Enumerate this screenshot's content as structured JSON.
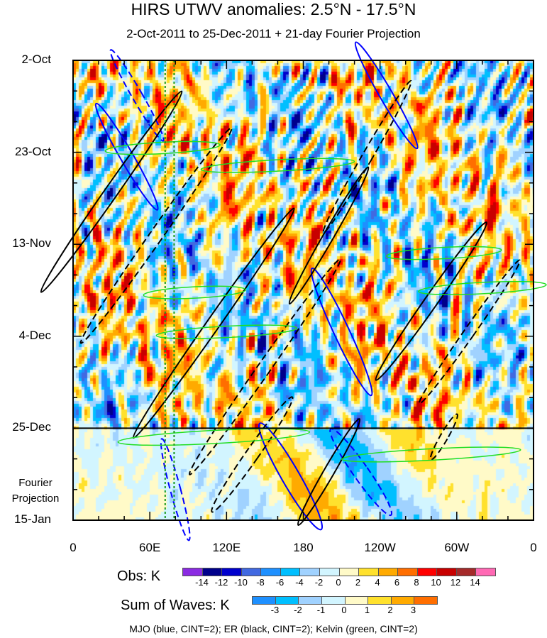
{
  "title": "HIRS UTWV anomalies: 2.5°N - 17.5°N",
  "subtitle": "2-Oct-2011 to 25-Dec-2011 + 21-day Fourier Projection",
  "fourier_label": [
    "Fourier",
    "Projection"
  ],
  "footer": "MJO (blue, CINT=2); ER (black, CINT=2); Kelvin (green, CINT=2)",
  "chart_data": {
    "type": "heatmap",
    "x_ticks": [
      {
        "lon": 0,
        "label": "0"
      },
      {
        "lon": 60,
        "label": "60E"
      },
      {
        "lon": 120,
        "label": "120E"
      },
      {
        "lon": 180,
        "label": "180"
      },
      {
        "lon": 240,
        "label": "120W"
      },
      {
        "lon": 300,
        "label": "60W"
      },
      {
        "lon": 360,
        "label": "0"
      }
    ],
    "y_ticks": [
      {
        "day": 0,
        "label": "2-Oct"
      },
      {
        "day": 21,
        "label": "23-Oct"
      },
      {
        "day": 42,
        "label": "13-Nov"
      },
      {
        "day": 63,
        "label": "4-Dec"
      },
      {
        "day": 84,
        "label": "25-Dec"
      },
      {
        "day": 105,
        "label": "15-Jan"
      }
    ],
    "xlim": [
      0,
      360
    ],
    "ylim_days": [
      0,
      105
    ],
    "obs_end_day": 84,
    "obs_colorbar": {
      "label": "Obs: K",
      "levels": [
        "-14",
        "-12",
        "-10",
        "-8",
        "-6",
        "-4",
        "-2",
        "0",
        "2",
        "4",
        "6",
        "8",
        "10",
        "12",
        "14"
      ],
      "colors": [
        "#8b2be2",
        "#00008b",
        "#0000cd",
        "#4169e1",
        "#1e90ff",
        "#00bfff",
        "#a0d2ff",
        "#d2f5ff",
        "#fffac8",
        "#ffe12d",
        "#ffaa00",
        "#ff6e00",
        "#ff0000",
        "#c80000",
        "#a52a2a",
        "#ff69b4"
      ]
    },
    "waves_colorbar": {
      "label": "Sum of Waves: K",
      "levels": [
        "-3",
        "-2",
        "-1",
        "0",
        "1",
        "2",
        "3"
      ],
      "colors": [
        "#1e90ff",
        "#00bfff",
        "#a0d2ff",
        "#d2f5ff",
        "#fffac8",
        "#ffe12d",
        "#ffaa00",
        "#ff6e00"
      ]
    },
    "mjo_reference_lons": [
      72,
      79
    ],
    "contours": [
      {
        "wave": "MJO",
        "color": "#0000ff",
        "lon": 50,
        "day": 8,
        "rx": 4,
        "ry": 12,
        "tilt": -30,
        "dash": true
      },
      {
        "wave": "MJO",
        "color": "#0000ff",
        "lon": 42,
        "day": 22,
        "rx": 5,
        "ry": 14,
        "tilt": -30,
        "dash": false
      },
      {
        "wave": "MJO",
        "color": "#0000ff",
        "lon": 245,
        "day": 8,
        "rx": 5,
        "ry": 14,
        "tilt": -30,
        "dash": false
      },
      {
        "wave": "MJO",
        "color": "#0000ff",
        "lon": 210,
        "day": 62,
        "rx": 6,
        "ry": 16,
        "tilt": -25,
        "dash": false
      },
      {
        "wave": "MJO",
        "color": "#0000ff",
        "lon": 225,
        "day": 94,
        "rx": 6,
        "ry": 12,
        "tilt": -35,
        "dash": true
      },
      {
        "wave": "MJO",
        "color": "#0000ff",
        "lon": 170,
        "day": 95,
        "rx": 7,
        "ry": 14,
        "tilt": -30,
        "dash": false
      },
      {
        "wave": "MJO",
        "color": "#0000ff",
        "lon": 80,
        "day": 98,
        "rx": 4,
        "ry": 12,
        "tilt": -15,
        "dash": true
      },
      {
        "wave": "ER",
        "color": "#000000",
        "lon": 30,
        "day": 30,
        "rx": 5,
        "ry": 28,
        "tilt": 35,
        "dash": false
      },
      {
        "wave": "ER",
        "color": "#000000",
        "lon": 65,
        "day": 40,
        "rx": 5,
        "ry": 30,
        "tilt": 35,
        "dash": true
      },
      {
        "wave": "ER",
        "color": "#000000",
        "lon": 110,
        "day": 60,
        "rx": 5,
        "ry": 32,
        "tilt": 35,
        "dash": false
      },
      {
        "wave": "ER",
        "color": "#000000",
        "lon": 150,
        "day": 70,
        "rx": 5,
        "ry": 30,
        "tilt": 35,
        "dash": true
      },
      {
        "wave": "ER",
        "color": "#000000",
        "lon": 200,
        "day": 40,
        "rx": 4,
        "ry": 18,
        "tilt": 30,
        "dash": false
      },
      {
        "wave": "ER",
        "color": "#000000",
        "lon": 230,
        "day": 22,
        "rx": 4,
        "ry": 20,
        "tilt": 30,
        "dash": true
      },
      {
        "wave": "ER",
        "color": "#000000",
        "lon": 280,
        "day": 55,
        "rx": 5,
        "ry": 22,
        "tilt": 35,
        "dash": false
      },
      {
        "wave": "ER",
        "color": "#000000",
        "lon": 310,
        "day": 62,
        "rx": 4,
        "ry": 20,
        "tilt": 35,
        "dash": true
      },
      {
        "wave": "ER",
        "color": "#000000",
        "lon": 200,
        "day": 94,
        "rx": 4,
        "ry": 14,
        "tilt": 30,
        "dash": false
      },
      {
        "wave": "ER",
        "color": "#000000",
        "lon": 140,
        "day": 90,
        "rx": 5,
        "ry": 16,
        "tilt": 35,
        "dash": true
      },
      {
        "wave": "ER",
        "color": "#000000",
        "lon": 290,
        "day": 86,
        "rx": 3,
        "ry": 6,
        "tilt": 30,
        "dash": true
      },
      {
        "wave": "Kelvin",
        "color": "#22dd22",
        "lon": 70,
        "day": 20,
        "rx": 45,
        "ry": 1.3,
        "tilt": -3,
        "dash": false
      },
      {
        "wave": "Kelvin",
        "color": "#22dd22",
        "lon": 160,
        "day": 24,
        "rx": 60,
        "ry": 1.3,
        "tilt": -3,
        "dash": false
      },
      {
        "wave": "Kelvin",
        "color": "#22dd22",
        "lon": 120,
        "day": 62,
        "rx": 55,
        "ry": 1.3,
        "tilt": -3,
        "dash": false
      },
      {
        "wave": "Kelvin",
        "color": "#22dd22",
        "lon": 95,
        "day": 53,
        "rx": 40,
        "ry": 1.3,
        "tilt": -3,
        "dash": false
      },
      {
        "wave": "Kelvin",
        "color": "#22dd22",
        "lon": 110,
        "day": 86,
        "rx": 75,
        "ry": 1.5,
        "tilt": -3,
        "dash": false
      },
      {
        "wave": "Kelvin",
        "color": "#22dd22",
        "lon": 280,
        "day": 90,
        "rx": 70,
        "ry": 1.3,
        "tilt": -3,
        "dash": false
      },
      {
        "wave": "Kelvin",
        "color": "#22dd22",
        "lon": 320,
        "day": 52,
        "rx": 50,
        "ry": 1.3,
        "tilt": -3,
        "dash": false
      },
      {
        "wave": "Kelvin",
        "color": "#22dd22",
        "lon": 290,
        "day": 44,
        "rx": 45,
        "ry": 1.3,
        "tilt": -3,
        "dash": false
      }
    ]
  }
}
